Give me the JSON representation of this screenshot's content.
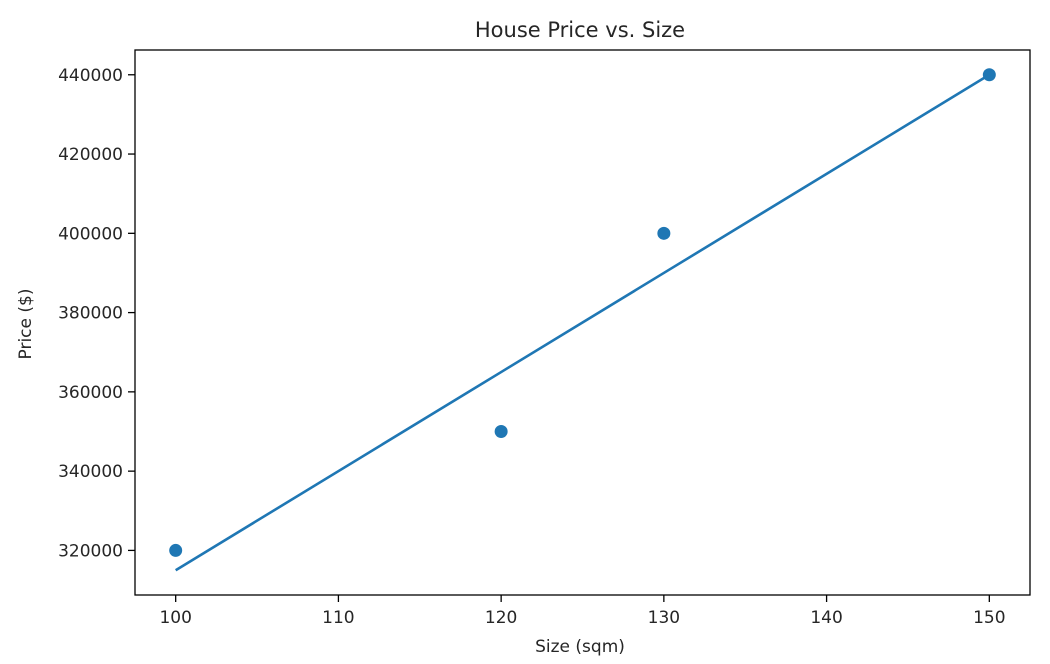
{
  "chart_data": {
    "type": "scatter",
    "title": "House Price vs. Size",
    "xlabel": "Size (sqm)",
    "ylabel": "Price ($)",
    "xlim": [
      97.5,
      152.5
    ],
    "ylim": [
      308750,
      446250
    ],
    "xticks": [
      100,
      110,
      120,
      130,
      140,
      150
    ],
    "yticks": [
      320000,
      340000,
      360000,
      380000,
      400000,
      420000,
      440000
    ],
    "grid": false,
    "legend": "none",
    "series": [
      {
        "kind": "scatter",
        "color": "#1f77b4",
        "x": [
          100,
          120,
          130,
          150
        ],
        "y": [
          320000,
          350000,
          400000,
          440000
        ]
      },
      {
        "kind": "line",
        "color": "#1f77b4",
        "x": [
          100,
          120,
          130,
          150
        ],
        "y": [
          315000,
          365000,
          390000,
          440000
        ]
      }
    ]
  }
}
